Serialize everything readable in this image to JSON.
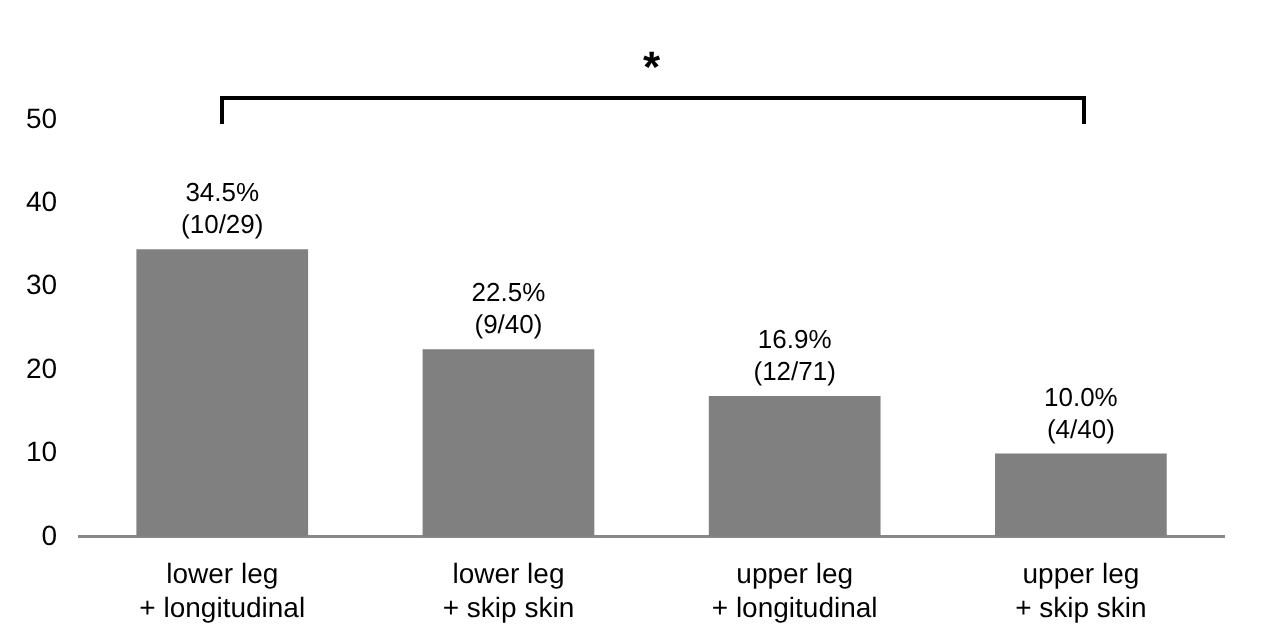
{
  "chart_data": {
    "type": "bar",
    "categories": [
      "lower leg\n+ longitudinal",
      "lower leg\n+ skip skin",
      "upper leg\n+ longitudinal",
      "upper leg\n+ skip skin"
    ],
    "values": [
      34.5,
      22.5,
      16.9,
      10.0
    ],
    "value_labels": [
      "34.5%\n(10/29)",
      "22.5%\n(9/40)",
      "16.9%\n(12/71)",
      "10.0%\n(4/40)"
    ],
    "color": "#808080",
    "ylim": [
      0,
      50
    ],
    "yticks": [
      0,
      10,
      20,
      30,
      40,
      50
    ],
    "annotations": [
      "*"
    ]
  }
}
